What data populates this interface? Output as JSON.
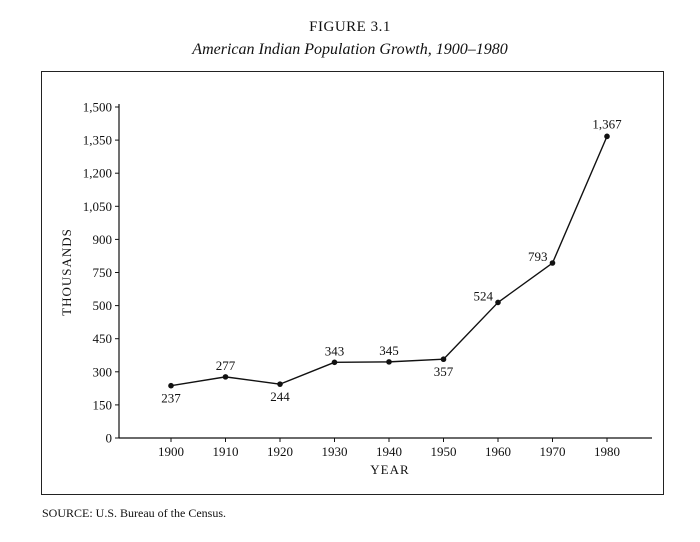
{
  "figure": {
    "number": "FIGURE 3.1",
    "title": "American Indian Population Growth, 1900–1980"
  },
  "source": "SOURCE: U.S. Bureau of the Census.",
  "chart_data": {
    "type": "line",
    "title": "American Indian Population Growth, 1900–1980",
    "xlabel": "YEAR",
    "ylabel": "THOUSANDS",
    "categories": [
      "1900",
      "1910",
      "1920",
      "1930",
      "1940",
      "1950",
      "1960",
      "1970",
      "1980"
    ],
    "y_ticks": [
      "0",
      "150",
      "300",
      "450",
      "500",
      "750",
      "900",
      "1,050",
      "1,200",
      "1,350",
      "1,500"
    ],
    "ylim": [
      0,
      1500
    ],
    "series": [
      {
        "name": "American Indian population (thousands)",
        "values": [
          237,
          277,
          244,
          343,
          345,
          357,
          524,
          793,
          1367
        ],
        "labels": [
          "237",
          "277",
          "244",
          "343",
          "345",
          "357",
          "524",
          "793",
          "1,367"
        ]
      }
    ],
    "grid": false,
    "legend": "none"
  },
  "colors": {
    "ink": "#111111",
    "background": "#ffffff"
  }
}
